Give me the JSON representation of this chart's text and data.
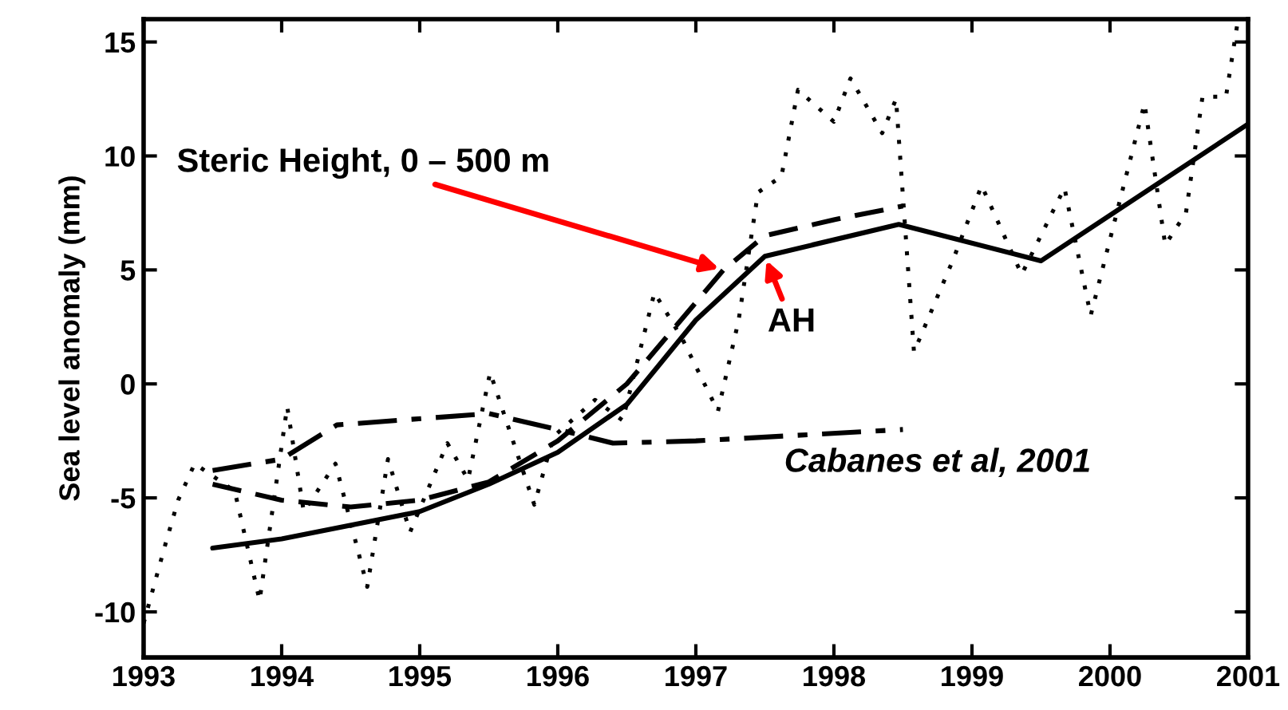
{
  "chart_data": {
    "type": "line",
    "ylabel": "Sea level anomaly (mm)",
    "xlim": [
      1993,
      2001
    ],
    "ylim": [
      -12,
      16
    ],
    "xticks": [
      1993,
      1994,
      1995,
      1996,
      1997,
      1998,
      1999,
      2000,
      2001
    ],
    "yticks": [
      -10,
      -5,
      0,
      5,
      10,
      15
    ],
    "grid": false,
    "legend": false,
    "marker": "none",
    "series": [
      {
        "name": "Steric Height, 0 – 500 m",
        "color": "#000000",
        "line_style": "dashed",
        "x": [
          1993.5,
          1994,
          1994.5,
          1995,
          1995.5,
          1996,
          1996.5,
          1997.2,
          1997.5,
          1998,
          1998.5
        ],
        "values": [
          -4.4,
          -5.1,
          -5.4,
          -5.1,
          -4.3,
          -2.5,
          0,
          5.0,
          6.5,
          7.2,
          7.8
        ]
      },
      {
        "name": "AH",
        "color": "#000000",
        "line_style": "solid",
        "x": [
          1993.5,
          1994,
          1995,
          1995.5,
          1996,
          1996.5,
          1997,
          1997.5,
          1998.47,
          1999.5,
          2001
        ],
        "values": [
          -7.2,
          -6.8,
          -5.6,
          -4.4,
          -3.0,
          -0.9,
          2.8,
          5.6,
          7.0,
          5.4,
          11.4
        ]
      },
      {
        "name": "Cabanes et al, 2001",
        "color": "#000000",
        "line_style": "dashdot",
        "x": [
          1993.5,
          1994,
          1994.4,
          1995.5,
          1996,
          1996.4,
          1997,
          1998.5
        ],
        "values": [
          -3.8,
          -3.3,
          -1.8,
          -1.3,
          -2.0,
          -2.6,
          -2.5,
          -2.0
        ]
      },
      {
        "color": "#000000",
        "line_style": "dotted",
        "x": [
          1993,
          1993.15,
          1993.25,
          1993.37,
          1993.66,
          1993.84,
          1994.04,
          1994.16,
          1994.39,
          1994.62,
          1994.77,
          1994.93,
          1995.2,
          1995.35,
          1995.51,
          1995.83,
          1995.97,
          1996.27,
          1996.47,
          1996.7,
          1996.9,
          1997.16,
          1997.31,
          1997.45,
          1997.62,
          1997.74,
          1998,
          1998.12,
          1998.35,
          1998.45,
          1998.58,
          1998.86,
          1999.07,
          1999.36,
          1999.67,
          1999.86,
          2000.25,
          2000.4,
          2000.55,
          2000.67,
          2000.84,
          2000.92
        ],
        "values": [
          -10.5,
          -7.2,
          -5.1,
          -3.5,
          -4.7,
          -9.5,
          -1.0,
          -5.6,
          -3.5,
          -8.9,
          -3.3,
          -6.5,
          -2.6,
          -4.2,
          0.5,
          -5.3,
          -2.3,
          -0.7,
          -1.6,
          4.0,
          2.0,
          -1.2,
          2.8,
          8.4,
          9.1,
          12.9,
          11.5,
          13.4,
          11.0,
          12.5,
          1.4,
          5.4,
          8.7,
          4.8,
          8.6,
          3.0,
          12.3,
          6.1,
          7.5,
          12.6,
          12.6,
          15.7
        ]
      }
    ]
  }
}
